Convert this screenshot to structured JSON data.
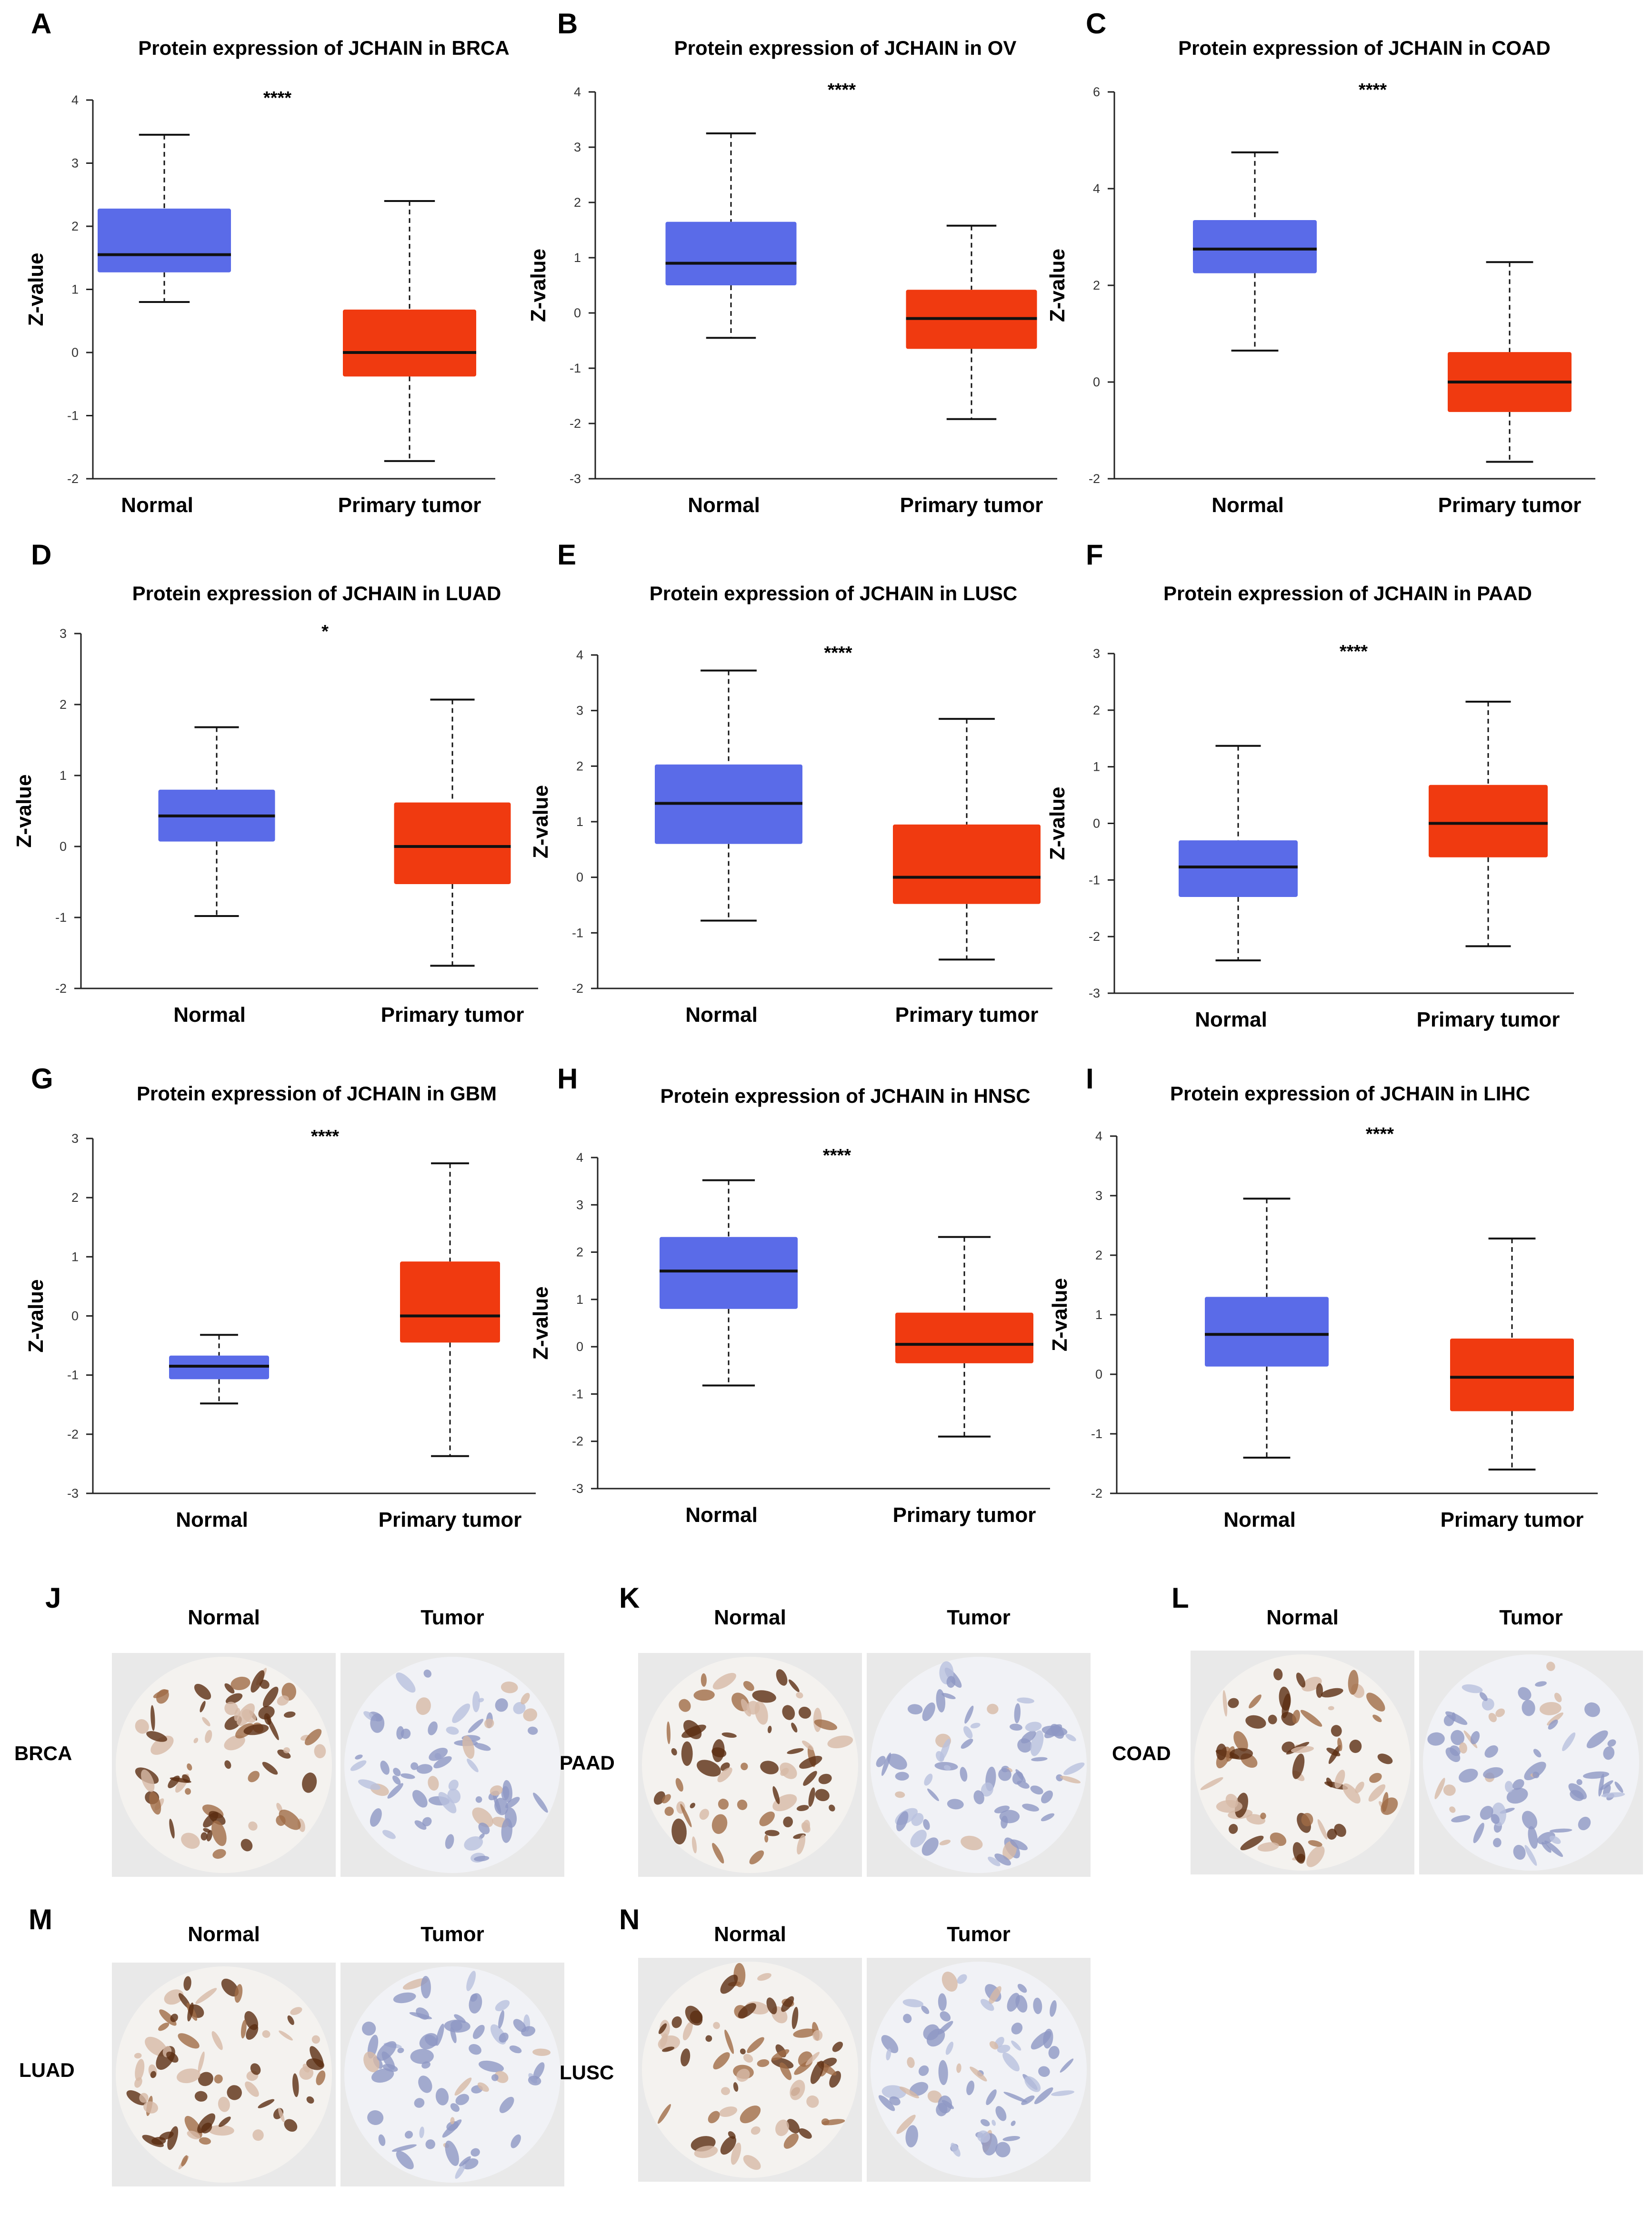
{
  "colors": {
    "normal": "#5a6be8",
    "tumor": "#f03a10",
    "median": "#111111",
    "axis": "#222222"
  },
  "chart_data": [
    {
      "panel": "A",
      "type": "box",
      "title": "Protein expression of JCHAIN in BRCA",
      "ylabel": "Z-value",
      "ylim": [
        -2,
        4
      ],
      "ticks": [
        -2,
        -1,
        0,
        1,
        2,
        3,
        4
      ],
      "significance": "****",
      "categories": [
        "Normal",
        "Primary tumor"
      ],
      "boxes": [
        {
          "name": "Normal",
          "min": 0.8,
          "q1": 1.27,
          "median": 1.55,
          "q3": 2.28,
          "max": 3.45
        },
        {
          "name": "Primary tumor",
          "min": -1.72,
          "q1": -0.38,
          "median": 0.0,
          "q3": 0.68,
          "max": 2.4
        }
      ]
    },
    {
      "panel": "B",
      "type": "box",
      "title": "Protein expression of JCHAIN in OV",
      "ylabel": "Z-value",
      "ylim": [
        -3,
        4
      ],
      "ticks": [
        -3,
        -2,
        -1,
        0,
        1,
        2,
        3,
        4
      ],
      "significance": "****",
      "categories": [
        "Normal",
        "Primary tumor"
      ],
      "boxes": [
        {
          "name": "Normal",
          "min": -0.45,
          "q1": 0.5,
          "median": 0.9,
          "q3": 1.65,
          "max": 3.25
        },
        {
          "name": "Primary tumor",
          "min": -1.92,
          "q1": -0.65,
          "median": -0.1,
          "q3": 0.42,
          "max": 1.58
        }
      ]
    },
    {
      "panel": "C",
      "type": "box",
      "title": "Protein expression of JCHAIN in COAD",
      "ylabel": "Z-value",
      "ylim": [
        -2,
        6
      ],
      "ticks": [
        -2,
        0,
        2,
        4,
        6
      ],
      "significance": "****",
      "categories": [
        "Normal",
        "Primary tumor"
      ],
      "boxes": [
        {
          "name": "Normal",
          "min": 0.65,
          "q1": 2.25,
          "median": 2.75,
          "q3": 3.35,
          "max": 4.75
        },
        {
          "name": "Primary tumor",
          "min": -1.65,
          "q1": -0.62,
          "median": 0.0,
          "q3": 0.62,
          "max": 2.48
        }
      ]
    },
    {
      "panel": "D",
      "type": "box",
      "title": "Protein expression of JCHAIN in LUAD",
      "ylabel": "Z-value",
      "ylim": [
        -2,
        3
      ],
      "ticks": [
        -2,
        -1,
        0,
        1,
        2,
        3
      ],
      "significance": "*",
      "categories": [
        "Normal",
        "Primary tumor"
      ],
      "boxes": [
        {
          "name": "Normal",
          "min": -0.98,
          "q1": 0.07,
          "median": 0.43,
          "q3": 0.8,
          "max": 1.68
        },
        {
          "name": "Primary tumor",
          "min": -1.68,
          "q1": -0.53,
          "median": 0.0,
          "q3": 0.62,
          "max": 2.07
        }
      ]
    },
    {
      "panel": "E",
      "type": "box",
      "title": "Protein expression of JCHAIN in LUSC",
      "ylabel": "Z-value",
      "ylim": [
        -2,
        4
      ],
      "ticks": [
        -2,
        -1,
        0,
        1,
        2,
        3,
        4
      ],
      "significance": "****",
      "categories": [
        "Normal",
        "Primary tumor"
      ],
      "boxes": [
        {
          "name": "Normal",
          "min": -0.78,
          "q1": 0.6,
          "median": 1.33,
          "q3": 2.03,
          "max": 3.72
        },
        {
          "name": "Primary tumor",
          "min": -1.48,
          "q1": -0.48,
          "median": 0.0,
          "q3": 0.95,
          "max": 2.85
        }
      ]
    },
    {
      "panel": "F",
      "type": "box",
      "title": "Protein expression of JCHAIN in PAAD",
      "ylabel": "Z-value",
      "ylim": [
        -3,
        3
      ],
      "ticks": [
        -3,
        -2,
        -1,
        0,
        1,
        2,
        3
      ],
      "significance": "****",
      "categories": [
        "Normal",
        "Primary tumor"
      ],
      "boxes": [
        {
          "name": "Normal",
          "min": -2.42,
          "q1": -1.3,
          "median": -0.77,
          "q3": -0.3,
          "max": 1.37
        },
        {
          "name": "Primary tumor",
          "min": -2.17,
          "q1": -0.6,
          "median": 0.0,
          "q3": 0.68,
          "max": 2.15
        }
      ]
    },
    {
      "panel": "G",
      "type": "box",
      "title": "Protein expression of JCHAIN in GBM",
      "ylabel": "Z-value",
      "ylim": [
        -3,
        3
      ],
      "ticks": [
        -3,
        -2,
        -1,
        0,
        1,
        2,
        3
      ],
      "significance": "****",
      "categories": [
        "Normal",
        "Primary tumor"
      ],
      "boxes": [
        {
          "name": "Normal",
          "min": -1.48,
          "q1": -1.07,
          "median": -0.85,
          "q3": -0.67,
          "max": -0.32
        },
        {
          "name": "Primary tumor",
          "min": -2.37,
          "q1": -0.45,
          "median": 0.0,
          "q3": 0.92,
          "max": 2.58
        }
      ]
    },
    {
      "panel": "H",
      "type": "box",
      "title": "Protein expression of JCHAIN in HNSC",
      "ylabel": "Z-value",
      "ylim": [
        -3,
        4
      ],
      "ticks": [
        -3,
        -2,
        -1,
        0,
        1,
        2,
        3,
        4
      ],
      "significance": "****",
      "categories": [
        "Normal",
        "Primary tumor"
      ],
      "boxes": [
        {
          "name": "Normal",
          "min": -0.82,
          "q1": 0.8,
          "median": 1.6,
          "q3": 2.32,
          "max": 3.52
        },
        {
          "name": "Primary tumor",
          "min": -1.9,
          "q1": -0.35,
          "median": 0.05,
          "q3": 0.72,
          "max": 2.32
        }
      ]
    },
    {
      "panel": "I",
      "type": "box",
      "title": "Protein expression of JCHAIN in LIHC",
      "ylabel": "Z-value",
      "ylim": [
        -2,
        4
      ],
      "ticks": [
        -2,
        -1,
        0,
        1,
        2,
        3,
        4
      ],
      "significance": "****",
      "categories": [
        "Normal",
        "Primary tumor"
      ],
      "boxes": [
        {
          "name": "Normal",
          "min": -1.4,
          "q1": 0.13,
          "median": 0.67,
          "q3": 1.3,
          "max": 2.95
        },
        {
          "name": "Primary tumor",
          "min": -1.6,
          "q1": -0.62,
          "median": -0.05,
          "q3": 0.6,
          "max": 2.28
        }
      ]
    }
  ],
  "ihc_panels": [
    {
      "panel": "J",
      "cancer": "BRCA",
      "normal_label": "Normal",
      "tumor_label": "Tumor"
    },
    {
      "panel": "K",
      "cancer": "PAAD",
      "normal_label": "Normal",
      "tumor_label": "Tumor"
    },
    {
      "panel": "L",
      "cancer": "COAD",
      "normal_label": "Normal",
      "tumor_label": "Tumor"
    },
    {
      "panel": "M",
      "cancer": "LUAD",
      "normal_label": "Normal",
      "tumor_label": "Tumor"
    },
    {
      "panel": "N",
      "cancer": "LUSC",
      "normal_label": "Normal",
      "tumor_label": "Tumor"
    }
  ]
}
